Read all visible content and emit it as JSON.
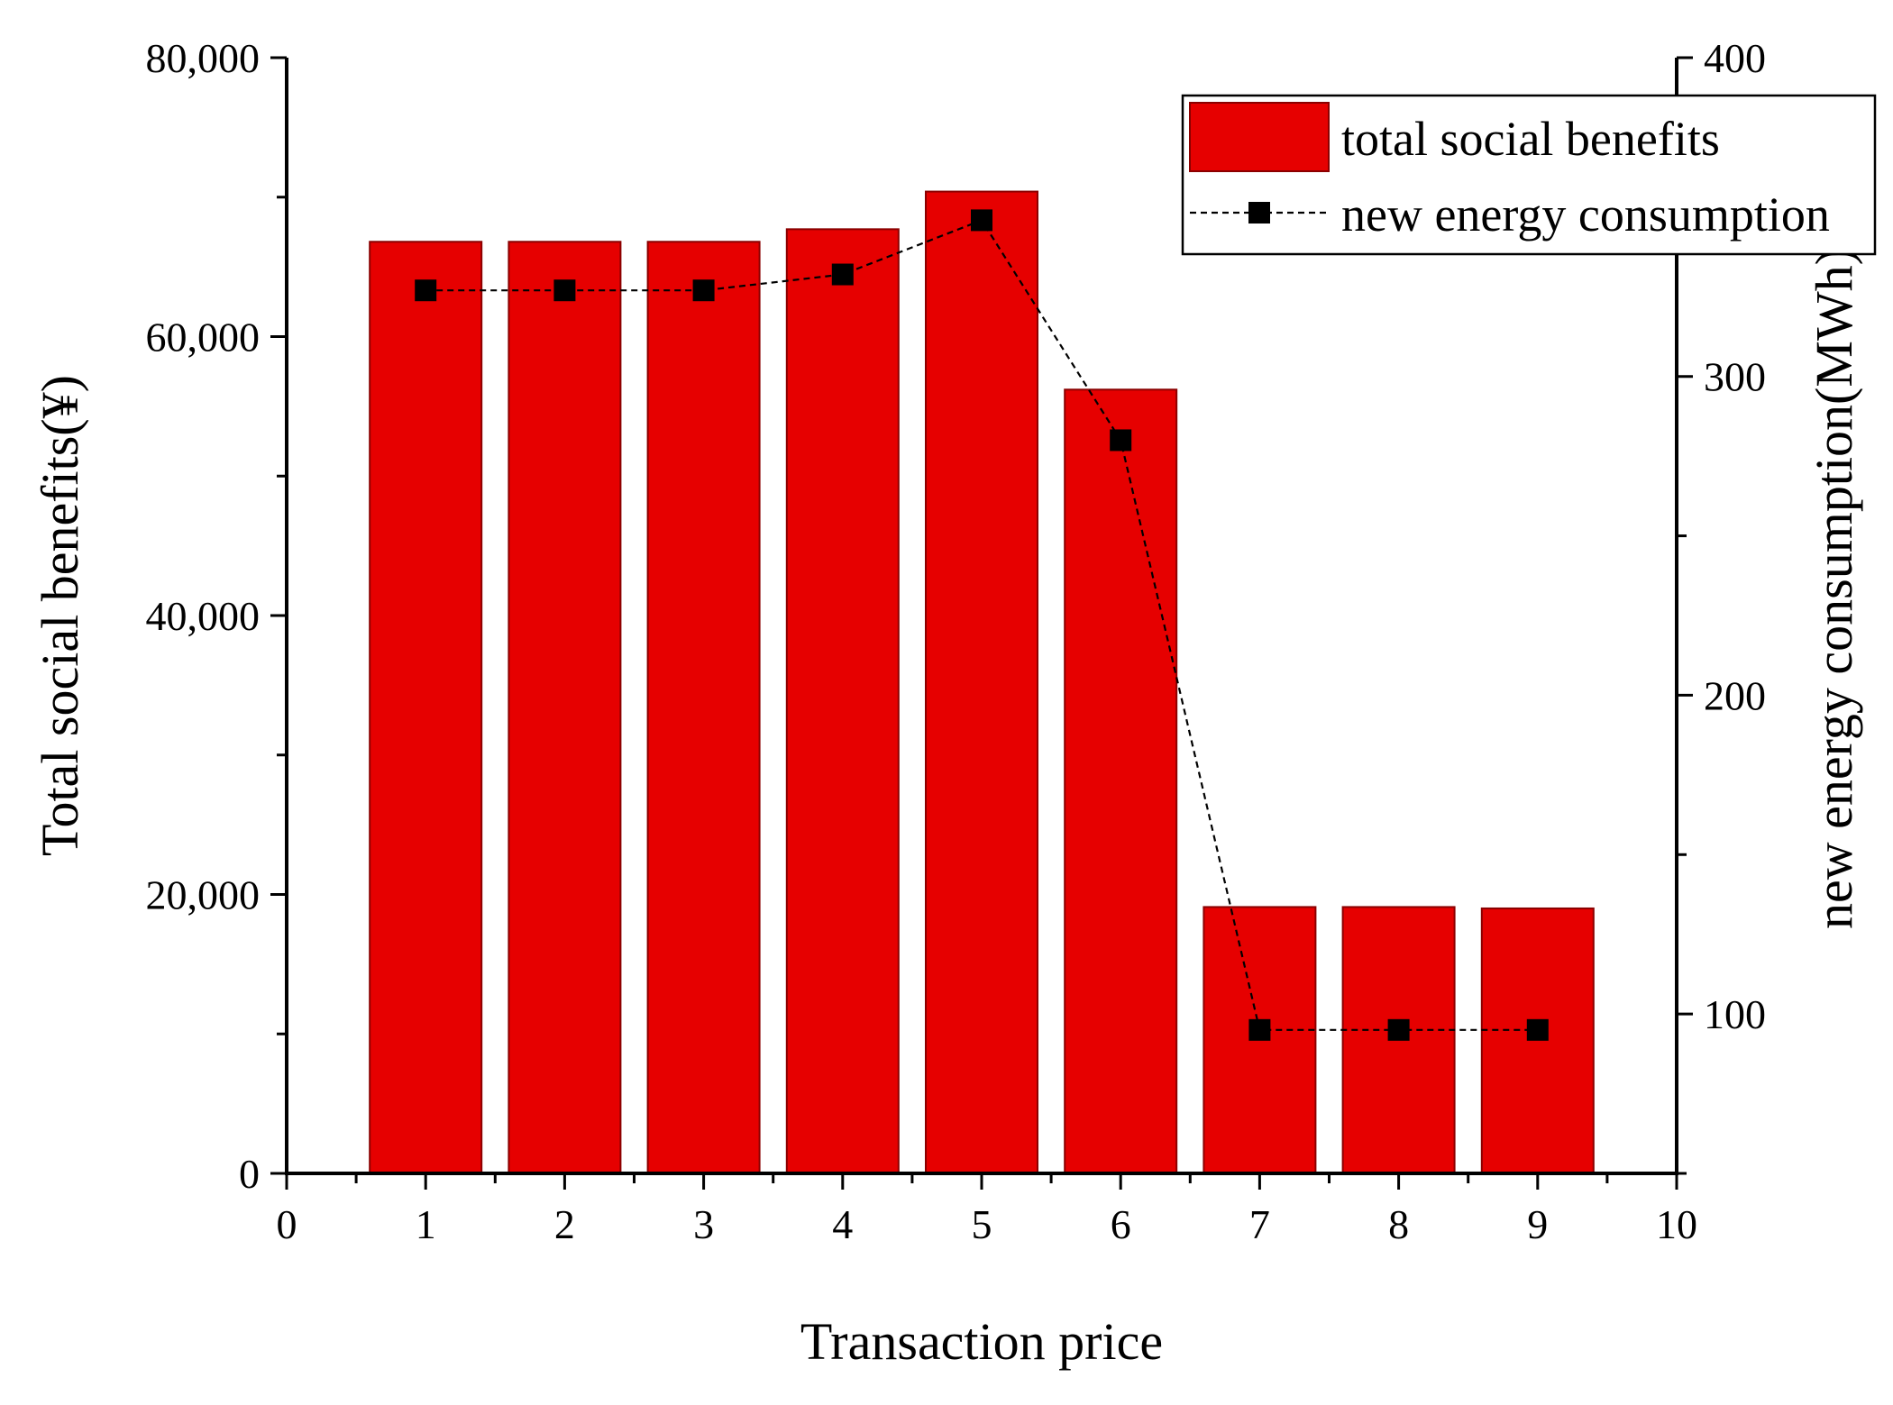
{
  "chart_data": {
    "type": "bar",
    "xlabel": "Transaction price",
    "ylabel_left": "Total social benefits(¥)",
    "ylabel_right": "new energy consumption(MWh)",
    "x_ticks": [
      "0",
      "1",
      "2",
      "3",
      "4",
      "5",
      "6",
      "7",
      "8",
      "9",
      "10"
    ],
    "xlim": [
      0,
      10
    ],
    "y_left_ticks": [
      "0",
      "20,000",
      "40,000",
      "60,000",
      "80,000"
    ],
    "ylim_left": [
      0,
      80000
    ],
    "y_right_ticks": [
      "100",
      "200",
      "300",
      "400"
    ],
    "ylim_right": [
      50,
      400
    ],
    "grid": false,
    "legend_position": "top-right",
    "colors": {
      "bar_fill": "#e60000",
      "bar_stroke": "#8b0000",
      "line": "#000000",
      "marker": "#000000"
    },
    "series": [
      {
        "name": "total social benefits",
        "type": "bar",
        "axis": "left",
        "x": [
          1,
          2,
          3,
          4,
          5,
          6,
          7,
          8,
          9
        ],
        "values": [
          66800,
          66800,
          66800,
          67700,
          70400,
          56200,
          19100,
          19100,
          19000
        ]
      },
      {
        "name": "new energy consumption",
        "type": "line",
        "axis": "right",
        "marker": "square",
        "linestyle": "dashed",
        "x": [
          1,
          2,
          3,
          4,
          5,
          6,
          7,
          8,
          9
        ],
        "values": [
          327,
          327,
          327,
          332,
          349,
          280,
          95,
          95,
          95
        ]
      }
    ]
  }
}
